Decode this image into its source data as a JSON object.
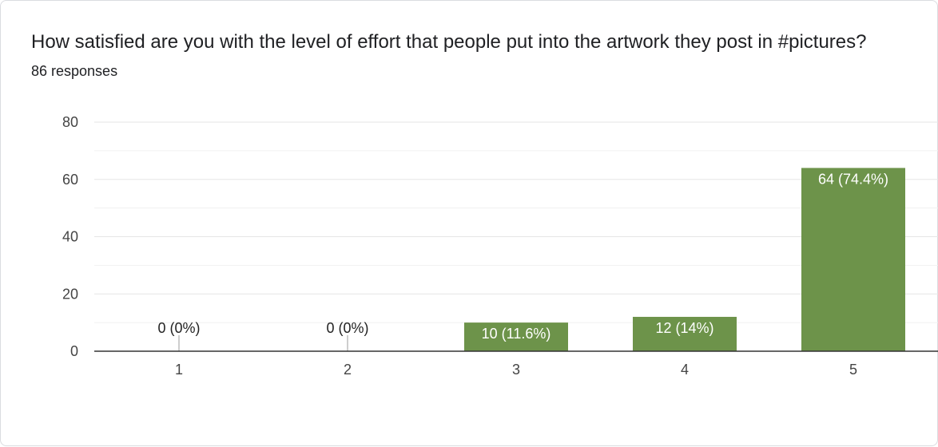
{
  "question": "How satisfied are you with the level of effort that people put into the artwork they post in #pictures?",
  "responses_label": "86 responses",
  "chart_data": {
    "type": "bar",
    "title": "How satisfied are you with the level of effort that people put into the artwork they post in #pictures?",
    "xlabel": "",
    "ylabel": "",
    "categories": [
      "1",
      "2",
      "3",
      "4",
      "5"
    ],
    "values": [
      0,
      0,
      10,
      12,
      64
    ],
    "data_labels": [
      "0 (0%)",
      "0 (0%)",
      "10 (11.6%)",
      "12 (14%)",
      "64 (74.4%)"
    ],
    "ylim": [
      0,
      80
    ],
    "yticks": [
      0,
      20,
      40,
      60,
      80
    ],
    "grid": true,
    "legend": "none",
    "bar_color": "#6d934a",
    "gridline_color": "#e6e6e6",
    "baseline_color": "#333333"
  }
}
